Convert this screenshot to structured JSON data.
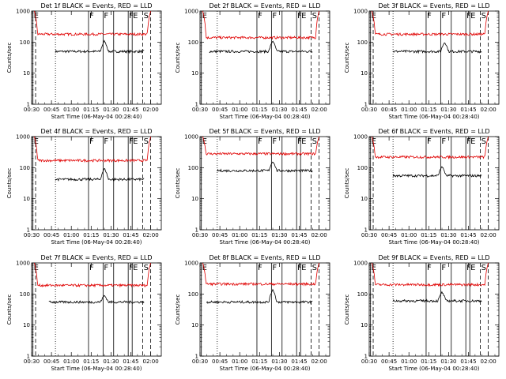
{
  "colors": {
    "events": "#000000",
    "lld": "#e00000",
    "background": "#ffffff"
  },
  "chart_data": [
    {
      "type": "line",
      "title": "Det 1f BLACK = Events, RED = LLD",
      "xlabel": "Start Time (06-May-04 00:28:40)",
      "ylabel": "Counts/sec",
      "yscale": "log",
      "ylim": [
        1,
        1000
      ],
      "xlim": [
        "00:30",
        "02:08"
      ],
      "xticks": [
        "00:30",
        "00:45",
        "01:00",
        "01:15",
        "01:30",
        "01:45",
        "02:00"
      ],
      "yticks": [
        "1",
        "10",
        "100",
        "1000"
      ],
      "series": [
        {
          "key": "events",
          "start": "00:48",
          "end": "01:55",
          "level": 50,
          "spike_time": "01:25",
          "spike_value": 110
        },
        {
          "key": "lld",
          "start": "00:32",
          "end": "02:00",
          "level": 180,
          "edge_high": 1000
        }
      ],
      "markers": [
        {
          "label": "E",
          "time": "00:31",
          "style": "solid"
        },
        {
          "label": "",
          "time": "00:33",
          "style": "dashed"
        },
        {
          "label": "",
          "time": "00:48",
          "style": "dotted"
        },
        {
          "label": "F",
          "time": "01:13",
          "style": "solid"
        },
        {
          "label": "F",
          "time": "01:24",
          "style": "solid"
        },
        {
          "label": "",
          "time": "01:32",
          "style": "solid"
        },
        {
          "label": "F",
          "time": "01:43",
          "style": "solid"
        },
        {
          "label": "E",
          "time": "01:46",
          "style": "solid"
        },
        {
          "label": "S",
          "time": "01:54",
          "style": "dashed"
        },
        {
          "label": "",
          "time": "02:00",
          "style": "dashed"
        }
      ]
    },
    {
      "type": "line",
      "title": "Det 2f BLACK = Events, RED = LLD",
      "xlabel": "Start Time (06-May-04 00:28:40)",
      "ylabel": "Counts/sec",
      "yscale": "log",
      "ylim": [
        1,
        1000
      ],
      "xlim": [
        "00:30",
        "02:08"
      ],
      "xticks": [
        "00:30",
        "00:45",
        "01:00",
        "01:15",
        "01:30",
        "01:45",
        "02:00"
      ],
      "yticks": [
        "1",
        "10",
        "100",
        "1000"
      ],
      "series": [
        {
          "key": "events",
          "start": "00:37",
          "end": "01:55",
          "level": 50,
          "spike_time": "01:25",
          "spike_value": 110
        },
        {
          "key": "lld",
          "start": "00:32",
          "end": "02:00",
          "level": 140,
          "edge_high": 1000
        }
      ],
      "markers": [
        {
          "label": "E",
          "time": "00:31",
          "style": "solid"
        },
        {
          "label": "",
          "time": "00:43",
          "style": "dotted"
        },
        {
          "label": "F",
          "time": "01:13",
          "style": "solid"
        },
        {
          "label": "F",
          "time": "01:24",
          "style": "solid"
        },
        {
          "label": "",
          "time": "01:32",
          "style": "solid"
        },
        {
          "label": "F",
          "time": "01:43",
          "style": "solid"
        },
        {
          "label": "E",
          "time": "01:46",
          "style": "solid"
        },
        {
          "label": "S",
          "time": "01:54",
          "style": "dashed"
        },
        {
          "label": "",
          "time": "02:00",
          "style": "dashed"
        }
      ]
    },
    {
      "type": "line",
      "title": "Det 3f BLACK = Events, RED = LLD",
      "xlabel": "Start Time (06-May-04 00:28:40)",
      "ylabel": "Counts/sec",
      "yscale": "log",
      "ylim": [
        1,
        1000
      ],
      "xlim": [
        "00:30",
        "02:08"
      ],
      "xticks": [
        "00:30",
        "00:45",
        "01:00",
        "01:15",
        "01:30",
        "01:45",
        "02:00"
      ],
      "yticks": [
        "1",
        "10",
        "100",
        "1000"
      ],
      "series": [
        {
          "key": "events",
          "start": "00:48",
          "end": "01:55",
          "level": 50,
          "spike_time": "01:27",
          "spike_value": 100
        },
        {
          "key": "lld",
          "start": "00:32",
          "end": "02:00",
          "level": 180,
          "edge_high": 1000
        }
      ],
      "markers": [
        {
          "label": "E",
          "time": "00:31",
          "style": "solid"
        },
        {
          "label": "",
          "time": "00:33",
          "style": "dashed"
        },
        {
          "label": "",
          "time": "00:48",
          "style": "dotted"
        },
        {
          "label": "F",
          "time": "01:13",
          "style": "solid"
        },
        {
          "label": "F",
          "time": "01:24",
          "style": "solid"
        },
        {
          "label": "",
          "time": "01:32",
          "style": "solid"
        },
        {
          "label": "F",
          "time": "01:43",
          "style": "solid"
        },
        {
          "label": "E",
          "time": "01:46",
          "style": "solid"
        },
        {
          "label": "S",
          "time": "01:54",
          "style": "dashed"
        },
        {
          "label": "",
          "time": "02:00",
          "style": "dashed"
        }
      ]
    },
    {
      "type": "line",
      "title": "Det 4f BLACK = Events, RED = LLD",
      "xlabel": "Start Time (06-May-04 00:28:40)",
      "ylabel": "Counts/sec",
      "yscale": "log",
      "ylim": [
        1,
        1000
      ],
      "xlim": [
        "00:30",
        "02:08"
      ],
      "xticks": [
        "00:30",
        "00:45",
        "01:00",
        "01:15",
        "01:30",
        "01:45",
        "02:00"
      ],
      "yticks": [
        "1",
        "10",
        "100",
        "1000"
      ],
      "series": [
        {
          "key": "events",
          "start": "00:48",
          "end": "01:55",
          "level": 42,
          "spike_time": "01:25",
          "spike_value": 95
        },
        {
          "key": "lld",
          "start": "00:32",
          "end": "02:00",
          "level": 170,
          "edge_high": 1000
        }
      ],
      "markers": [
        {
          "label": "E",
          "time": "00:31",
          "style": "solid"
        },
        {
          "label": "",
          "time": "00:33",
          "style": "dashed"
        },
        {
          "label": "",
          "time": "00:48",
          "style": "dotted"
        },
        {
          "label": "F",
          "time": "01:13",
          "style": "solid"
        },
        {
          "label": "F",
          "time": "01:24",
          "style": "solid"
        },
        {
          "label": "",
          "time": "01:32",
          "style": "solid"
        },
        {
          "label": "F",
          "time": "01:43",
          "style": "solid"
        },
        {
          "label": "E",
          "time": "01:46",
          "style": "solid"
        },
        {
          "label": "S",
          "time": "01:54",
          "style": "dashed"
        },
        {
          "label": "",
          "time": "02:00",
          "style": "dashed"
        }
      ]
    },
    {
      "type": "line",
      "title": "Det 5f BLACK = Events, RED = LLD",
      "xlabel": "Start Time (06-May-04 00:28:40)",
      "ylabel": "Counts/sec",
      "yscale": "log",
      "ylim": [
        1,
        1000
      ],
      "xlim": [
        "00:30",
        "02:08"
      ],
      "xticks": [
        "00:30",
        "00:45",
        "01:00",
        "01:15",
        "01:30",
        "01:45",
        "02:00"
      ],
      "yticks": [
        "1",
        "10",
        "100",
        "1000"
      ],
      "series": [
        {
          "key": "events",
          "start": "00:43",
          "end": "01:55",
          "level": 80,
          "spike_time": "01:25",
          "spike_value": 160
        },
        {
          "key": "lld",
          "start": "00:32",
          "end": "02:00",
          "level": 280,
          "edge_high": 1000
        }
      ],
      "markers": [
        {
          "label": "E",
          "time": "00:31",
          "style": "solid"
        },
        {
          "label": "",
          "time": "00:43",
          "style": "dotted"
        },
        {
          "label": "F",
          "time": "01:13",
          "style": "solid"
        },
        {
          "label": "F",
          "time": "01:24",
          "style": "solid"
        },
        {
          "label": "",
          "time": "01:32",
          "style": "solid"
        },
        {
          "label": "F",
          "time": "01:43",
          "style": "solid"
        },
        {
          "label": "E",
          "time": "01:46",
          "style": "solid"
        },
        {
          "label": "S",
          "time": "01:54",
          "style": "dashed"
        },
        {
          "label": "",
          "time": "02:00",
          "style": "dashed"
        }
      ]
    },
    {
      "type": "line",
      "title": "Det 6f BLACK = Events, RED = LLD",
      "xlabel": "Start Time (06-May-04 00:28:40)",
      "ylabel": "Counts/sec",
      "yscale": "log",
      "ylim": [
        1,
        1000
      ],
      "xlim": [
        "00:30",
        "02:08"
      ],
      "xticks": [
        "00:30",
        "00:45",
        "01:00",
        "01:15",
        "01:30",
        "01:45",
        "02:00"
      ],
      "yticks": [
        "1",
        "10",
        "100",
        "1000"
      ],
      "series": [
        {
          "key": "events",
          "start": "00:48",
          "end": "01:55",
          "level": 55,
          "spike_time": "01:25",
          "spike_value": 110
        },
        {
          "key": "lld",
          "start": "00:32",
          "end": "02:00",
          "level": 220,
          "edge_high": 1000
        }
      ],
      "markers": [
        {
          "label": "E",
          "time": "00:31",
          "style": "solid"
        },
        {
          "label": "",
          "time": "00:33",
          "style": "dashed"
        },
        {
          "label": "",
          "time": "00:48",
          "style": "dotted"
        },
        {
          "label": "F",
          "time": "01:13",
          "style": "solid"
        },
        {
          "label": "F",
          "time": "01:24",
          "style": "solid"
        },
        {
          "label": "",
          "time": "01:32",
          "style": "solid"
        },
        {
          "label": "F",
          "time": "01:43",
          "style": "solid"
        },
        {
          "label": "E",
          "time": "01:46",
          "style": "solid"
        },
        {
          "label": "S",
          "time": "01:54",
          "style": "dashed"
        },
        {
          "label": "",
          "time": "02:00",
          "style": "dashed"
        }
      ]
    },
    {
      "type": "line",
      "title": "Det 7f BLACK = Events, RED = LLD",
      "xlabel": "Start Time (06-May-04 00:28:40)",
      "ylabel": "Counts/sec",
      "yscale": "log",
      "ylim": [
        1,
        1000
      ],
      "xlim": [
        "00:30",
        "02:08"
      ],
      "xticks": [
        "00:30",
        "00:45",
        "01:00",
        "01:15",
        "01:30",
        "01:45",
        "02:00"
      ],
      "yticks": [
        "1",
        "10",
        "100",
        "1000"
      ],
      "series": [
        {
          "key": "events",
          "start": "00:43",
          "end": "01:55",
          "level": 55,
          "spike_time": "01:25",
          "spike_value": 90
        },
        {
          "key": "lld",
          "start": "00:32",
          "end": "02:00",
          "level": 190,
          "edge_high": 1000
        }
      ],
      "markers": [
        {
          "label": "E",
          "time": "00:31",
          "style": "solid"
        },
        {
          "label": "",
          "time": "00:33",
          "style": "dashed"
        },
        {
          "label": "",
          "time": "00:48",
          "style": "dotted"
        },
        {
          "label": "F",
          "time": "01:13",
          "style": "solid"
        },
        {
          "label": "F",
          "time": "01:24",
          "style": "solid"
        },
        {
          "label": "",
          "time": "01:32",
          "style": "solid"
        },
        {
          "label": "F",
          "time": "01:43",
          "style": "solid"
        },
        {
          "label": "E",
          "time": "01:46",
          "style": "solid"
        },
        {
          "label": "S",
          "time": "01:54",
          "style": "dashed"
        },
        {
          "label": "",
          "time": "02:00",
          "style": "dashed"
        }
      ]
    },
    {
      "type": "line",
      "title": "Det 8f BLACK = Events, RED = LLD",
      "xlabel": "Start Time (06-May-04 00:28:40)",
      "ylabel": "Counts/sec",
      "yscale": "log",
      "ylim": [
        1,
        1000
      ],
      "xlim": [
        "00:30",
        "02:08"
      ],
      "xticks": [
        "00:30",
        "00:45",
        "01:00",
        "01:15",
        "01:30",
        "01:45",
        "02:00"
      ],
      "yticks": [
        "1",
        "10",
        "100",
        "1000"
      ],
      "series": [
        {
          "key": "events",
          "start": "00:35",
          "end": "01:55",
          "level": 55,
          "spike_time": "01:25",
          "spike_value": 140
        },
        {
          "key": "lld",
          "start": "00:32",
          "end": "02:00",
          "level": 210,
          "edge_high": 1000
        }
      ],
      "markers": [
        {
          "label": "E",
          "time": "00:31",
          "style": "solid"
        },
        {
          "label": "",
          "time": "00:43",
          "style": "dotted"
        },
        {
          "label": "F",
          "time": "01:13",
          "style": "solid"
        },
        {
          "label": "F",
          "time": "01:24",
          "style": "solid"
        },
        {
          "label": "",
          "time": "01:32",
          "style": "solid"
        },
        {
          "label": "F",
          "time": "01:43",
          "style": "solid"
        },
        {
          "label": "E",
          "time": "01:46",
          "style": "solid"
        },
        {
          "label": "S",
          "time": "01:54",
          "style": "dashed"
        },
        {
          "label": "",
          "time": "02:00",
          "style": "dashed"
        }
      ]
    },
    {
      "type": "line",
      "title": "Det 9f BLACK = Events, RED = LLD",
      "xlabel": "Start Time (06-May-04 00:28:40)",
      "ylabel": "Counts/sec",
      "yscale": "log",
      "ylim": [
        1,
        1000
      ],
      "xlim": [
        "00:30",
        "02:08"
      ],
      "xticks": [
        "00:30",
        "00:45",
        "01:00",
        "01:15",
        "01:30",
        "01:45",
        "02:00"
      ],
      "yticks": [
        "1",
        "10",
        "100",
        "1000"
      ],
      "series": [
        {
          "key": "events",
          "start": "00:48",
          "end": "01:55",
          "level": 60,
          "spike_time": "01:25",
          "spike_value": 115
        },
        {
          "key": "lld",
          "start": "00:32",
          "end": "02:00",
          "level": 200,
          "edge_high": 1000
        }
      ],
      "markers": [
        {
          "label": "E",
          "time": "00:31",
          "style": "solid"
        },
        {
          "label": "",
          "time": "00:33",
          "style": "dashed"
        },
        {
          "label": "",
          "time": "00:48",
          "style": "dotted"
        },
        {
          "label": "F",
          "time": "01:13",
          "style": "solid"
        },
        {
          "label": "F",
          "time": "01:24",
          "style": "solid"
        },
        {
          "label": "",
          "time": "01:32",
          "style": "solid"
        },
        {
          "label": "F",
          "time": "01:43",
          "style": "solid"
        },
        {
          "label": "E",
          "time": "01:46",
          "style": "solid"
        },
        {
          "label": "S",
          "time": "01:54",
          "style": "dashed"
        },
        {
          "label": "",
          "time": "02:00",
          "style": "dashed"
        }
      ]
    }
  ]
}
